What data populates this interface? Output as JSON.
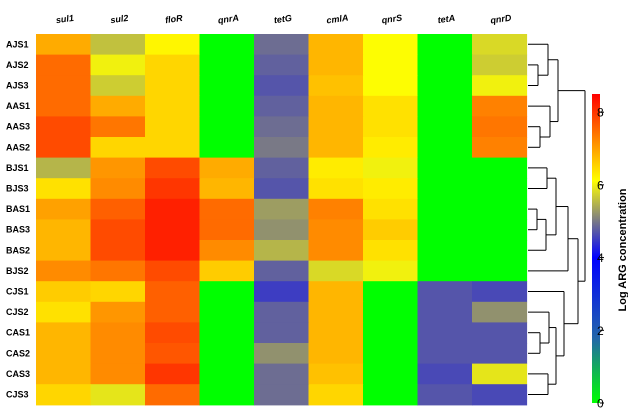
{
  "chart_data": {
    "type": "heatmap",
    "columns": [
      "sul1",
      "sul2",
      "floR",
      "qnrA",
      "tetG",
      "cmlA",
      "qnrS",
      "tetA",
      "qnrD"
    ],
    "rows": [
      "AJS1",
      "AJS2",
      "AJS3",
      "AAS1",
      "AAS3",
      "AAS2",
      "BJS1",
      "BJS3",
      "BAS1",
      "BAS3",
      "BAS2",
      "BJS2",
      "CJS1",
      "CJS2",
      "CAS1",
      "CAS2",
      "CAS3",
      "CJS3"
    ],
    "values": [
      [
        6.9,
        5.6,
        6.2,
        0.0,
        4.9,
        6.8,
        6.1,
        0.0,
        5.8
      ],
      [
        7.5,
        6.0,
        6.5,
        0.0,
        4.8,
        6.8,
        6.1,
        0.0,
        5.7
      ],
      [
        7.5,
        5.7,
        6.5,
        0.0,
        4.7,
        6.7,
        6.1,
        0.0,
        6.0
      ],
      [
        7.5,
        6.9,
        6.5,
        0.0,
        4.8,
        6.8,
        6.4,
        0.0,
        7.3
      ],
      [
        7.8,
        7.4,
        6.5,
        0.0,
        4.9,
        6.8,
        6.4,
        0.0,
        7.4
      ],
      [
        7.8,
        6.5,
        6.5,
        0.0,
        5.0,
        6.8,
        6.3,
        0.0,
        7.3
      ],
      [
        5.5,
        7.1,
        7.8,
        6.9,
        4.8,
        6.3,
        6.0,
        0.0,
        0.0
      ],
      [
        6.4,
        7.2,
        8.0,
        6.8,
        4.7,
        6.4,
        6.3,
        0.0,
        0.0
      ],
      [
        7.0,
        7.6,
        8.2,
        7.5,
        5.3,
        7.3,
        6.4,
        0.0,
        0.0
      ],
      [
        6.8,
        7.8,
        8.2,
        7.5,
        5.2,
        7.2,
        6.6,
        0.0,
        0.0
      ],
      [
        6.8,
        7.8,
        8.2,
        7.2,
        5.5,
        7.2,
        6.4,
        0.0,
        0.0
      ],
      [
        7.2,
        7.4,
        7.8,
        6.6,
        4.8,
        5.8,
        6.0,
        0.0,
        0.0
      ],
      [
        6.6,
        6.5,
        7.6,
        0.0,
        4.5,
        6.8,
        0.0,
        4.7,
        4.6
      ],
      [
        6.4,
        7.1,
        7.6,
        0.0,
        4.8,
        6.8,
        0.0,
        4.7,
        5.2
      ],
      [
        6.8,
        7.2,
        7.8,
        0.0,
        4.8,
        6.8,
        0.0,
        4.7,
        4.7
      ],
      [
        6.8,
        7.2,
        7.7,
        0.0,
        5.2,
        6.8,
        0.0,
        4.7,
        4.7
      ],
      [
        6.8,
        7.2,
        8.0,
        0.0,
        4.9,
        6.7,
        0.0,
        4.6,
        5.9
      ],
      [
        6.5,
        5.9,
        7.5,
        0.0,
        4.9,
        6.5,
        0.0,
        4.7,
        4.6
      ]
    ],
    "colorbar": {
      "title": "Log ARG concentration",
      "ticks": [
        0,
        2,
        4,
        6,
        8
      ],
      "range": [
        0,
        8.5
      ],
      "stops": [
        "#00ff00",
        "#2266aa",
        "#0000ff",
        "#ffff00",
        "#ff0000"
      ],
      "placement": "right"
    },
    "dendrogram": "right",
    "legend": "right"
  }
}
